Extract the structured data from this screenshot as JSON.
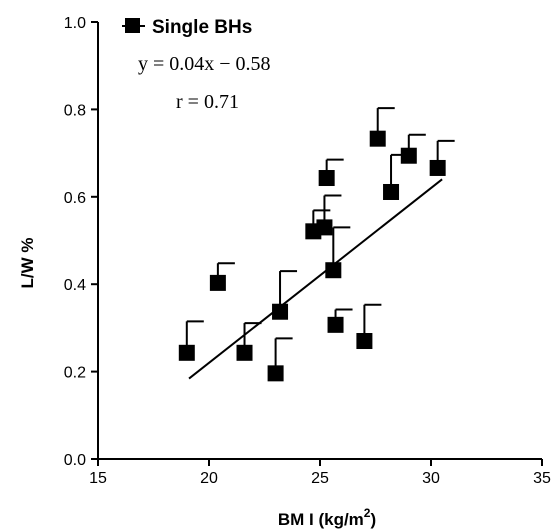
{
  "chart_data": {
    "type": "scatter",
    "xlabel": "BM I (kg/m",
    "xlabel_sup": "2",
    "xlabel_close": ")",
    "ylabel": "L/W  %",
    "xlim": [
      15,
      35
    ],
    "ylim": [
      0.0,
      1.0
    ],
    "x_ticks": [
      "15",
      "20",
      "25",
      "30",
      "35"
    ],
    "y_ticks": [
      "0.0",
      "0.2",
      "0.4",
      "0.6",
      "0.8",
      "1.0"
    ],
    "legend": {
      "label": "Single BHs",
      "position": "top-left"
    },
    "equation": "y = 0.04x − 0.58",
    "correlation": "r = 0.71",
    "marker_color": "#000000",
    "series": [
      {
        "name": "Single BHs",
        "points": [
          {
            "x": 19.0,
            "y": 0.243,
            "err": 0.072
          },
          {
            "x": 20.4,
            "y": 0.403,
            "err": 0.045
          },
          {
            "x": 21.6,
            "y": 0.243,
            "err": 0.068
          },
          {
            "x": 23.0,
            "y": 0.196,
            "err": 0.08
          },
          {
            "x": 23.2,
            "y": 0.337,
            "err": 0.093
          },
          {
            "x": 24.7,
            "y": 0.521,
            "err": 0.048
          },
          {
            "x": 25.2,
            "y": 0.53,
            "err": 0.073
          },
          {
            "x": 25.3,
            "y": 0.643,
            "err": 0.042
          },
          {
            "x": 25.6,
            "y": 0.432,
            "err": 0.098
          },
          {
            "x": 25.7,
            "y": 0.307,
            "err": 0.035
          },
          {
            "x": 27.0,
            "y": 0.27,
            "err": 0.083
          },
          {
            "x": 27.6,
            "y": 0.733,
            "err": 0.07
          },
          {
            "x": 28.2,
            "y": 0.611,
            "err": 0.085
          },
          {
            "x": 29.0,
            "y": 0.694,
            "err": 0.048
          },
          {
            "x": 30.3,
            "y": 0.666,
            "err": 0.062
          }
        ]
      }
    ],
    "trendline": {
      "x_start": 19.1,
      "x_end": 30.5,
      "slope": 0.04,
      "intercept": -0.58
    }
  }
}
